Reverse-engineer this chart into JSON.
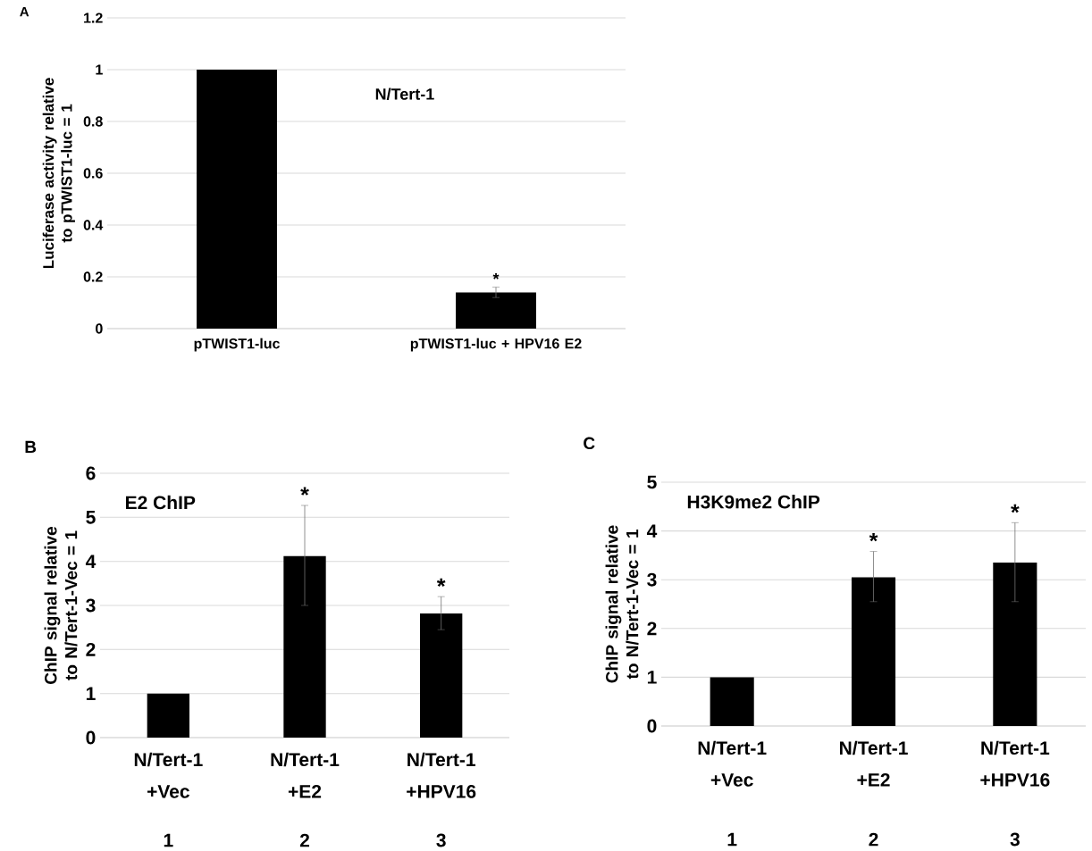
{
  "chart_data": [
    {
      "type": "bar",
      "ylabel": "Luciferase activity relative to pTWIST1-luc = 1",
      "categories": [
        "pTWIST1-luc",
        "pTWIST1-luc + HPV16 E2"
      ],
      "values": [
        1,
        0.14
      ],
      "errors": [
        null,
        [
          0.12,
          0.16
        ]
      ],
      "color": "#000000",
      "ylim": [
        0,
        1.2
      ],
      "yticks": [
        0,
        0.2,
        0.4,
        0.6,
        0.8,
        1,
        1.2
      ],
      "grid": "y",
      "annotations": [
        "A",
        "N/Tert-1",
        "*"
      ]
    },
    {
      "type": "bar",
      "ylabel": "ChIP signal relative to N/Tert-1-Vec = 1",
      "categories": [
        "N/Tert-1 +Vec",
        "N/Tert-1 +E2",
        "N/Tert-1 +HPV16"
      ],
      "values": [
        1,
        4.12,
        2.82
      ],
      "errors": [
        null,
        [
          3.0,
          5.27
        ],
        [
          2.45,
          3.2
        ]
      ],
      "color": "#000000",
      "ylim": [
        0,
        6
      ],
      "yticks": [
        0,
        1,
        2,
        3,
        4,
        5,
        6
      ],
      "grid": "y",
      "annotations": [
        "B",
        "E2 ChIP",
        "1",
        "2",
        "3",
        "*",
        "*"
      ]
    },
    {
      "type": "bar",
      "ylabel": "ChIP signal relative to N/Tert-1-Vec = 1",
      "categories": [
        "N/Tert-1 +Vec",
        "N/Tert-1 +E2",
        "N/Tert-1 +HPV16"
      ],
      "values": [
        1,
        3.05,
        3.35
      ],
      "errors": [
        null,
        [
          2.55,
          3.58
        ],
        [
          2.55,
          4.17
        ]
      ],
      "color": "#000000",
      "ylim": [
        0,
        5
      ],
      "yticks": [
        0,
        1,
        2,
        3,
        4,
        5
      ],
      "grid": "y",
      "annotations": [
        "C",
        "H3K9me2 ChIP",
        "1",
        "2",
        "3",
        "*",
        "*"
      ]
    }
  ]
}
